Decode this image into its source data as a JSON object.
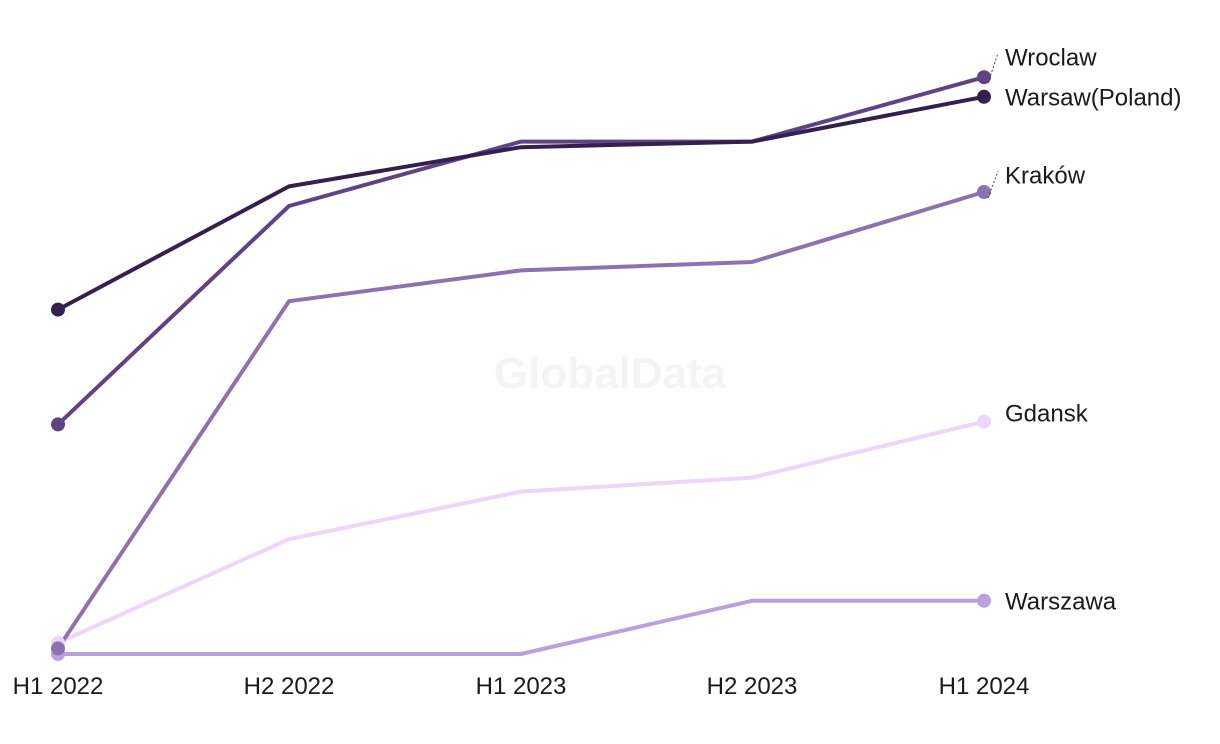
{
  "watermark": "GlobalData",
  "chart_data": {
    "type": "line",
    "title": "",
    "xlabel": "",
    "ylabel": "",
    "categories": [
      "H1 2022",
      "H2 2022",
      "H1 2023",
      "H2 2023",
      "H1 2024"
    ],
    "ylim": [
      0,
      100
    ],
    "grid": false,
    "legend": "direct-labels-right",
    "series": [
      {
        "name": "Warszawa",
        "color": "#b9a1e0",
        "values": [
          0,
          0,
          0,
          9.5,
          9.5
        ]
      },
      {
        "name": "Gdansk",
        "color": "#ecd6fb",
        "values": [
          2,
          20.5,
          29,
          31.5,
          41.5
        ]
      },
      {
        "name": "Kraków",
        "color": "#8c72b0",
        "values": [
          1,
          63,
          68.5,
          70,
          82.5
        ]
      },
      {
        "name": "Wroclaw",
        "color": "#5e4484",
        "values": [
          41,
          80,
          91.5,
          91.5,
          103
        ]
      },
      {
        "name": "Warsaw(Poland)",
        "color": "#33204f",
        "values": [
          61.5,
          83.5,
          90.5,
          91.5,
          99.5
        ]
      }
    ]
  }
}
